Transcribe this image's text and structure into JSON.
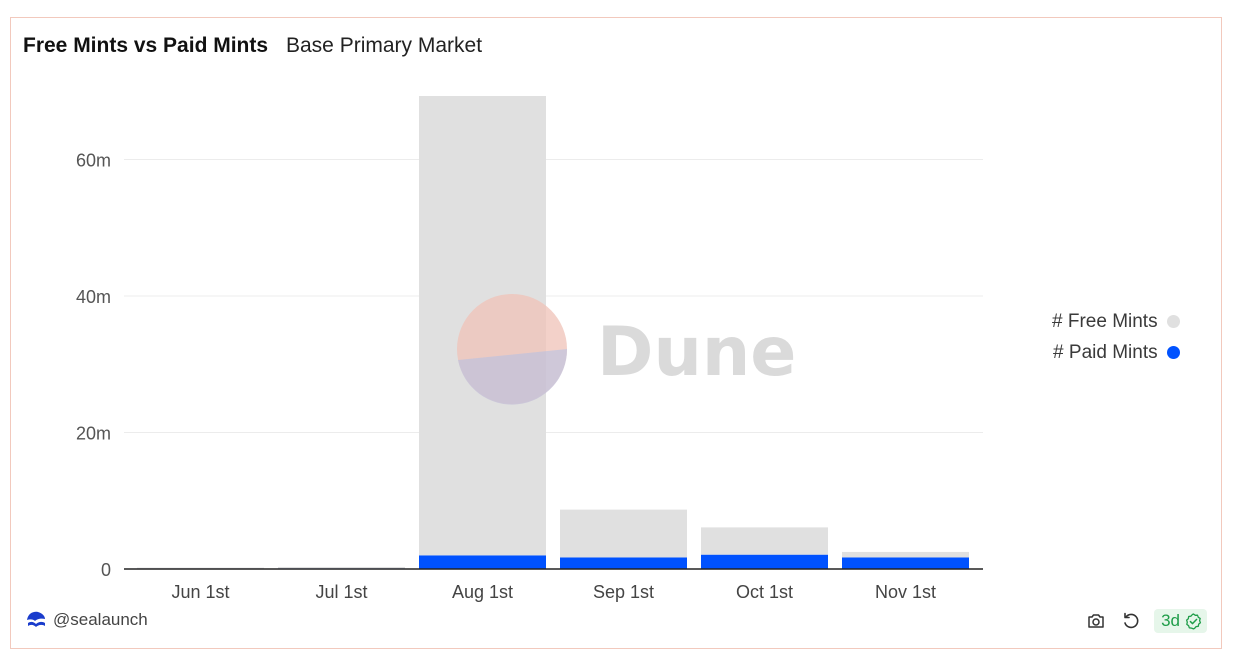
{
  "header": {
    "title": "Free Mints vs Paid Mints",
    "subtitle": "Base Primary Market"
  },
  "chart_data": {
    "type": "bar",
    "stacked": true,
    "categories": [
      "Jun 1st",
      "Jul 1st",
      "Aug 1st",
      "Sep 1st",
      "Oct 1st",
      "Nov 1st"
    ],
    "series": [
      {
        "name": "# Paid Mints",
        "color": "#0052ff",
        "values": [
          0.1,
          0.1,
          2.0,
          1.7,
          2.1,
          1.7
        ]
      },
      {
        "name": "# Free Mints",
        "color": "#e0e0e0",
        "values": [
          0.1,
          0.2,
          67.3,
          7.0,
          4.0,
          0.8
        ]
      }
    ],
    "y_ticks": [
      "0",
      "20m",
      "40m",
      "60m"
    ],
    "y_tick_values": [
      0,
      20,
      40,
      60
    ],
    "ylim": [
      0,
      70
    ],
    "grid": true,
    "legend_position": "right",
    "xlabel": "",
    "ylabel": ""
  },
  "watermark": {
    "text": "Dune"
  },
  "footer": {
    "author": "@sealaunch",
    "author_icon": "seal-logo-icon",
    "refresh_badge": "3d",
    "badge_color": "#1f9d49",
    "icons": [
      "camera-icon",
      "refresh-icon",
      "check-circle-icon"
    ]
  }
}
